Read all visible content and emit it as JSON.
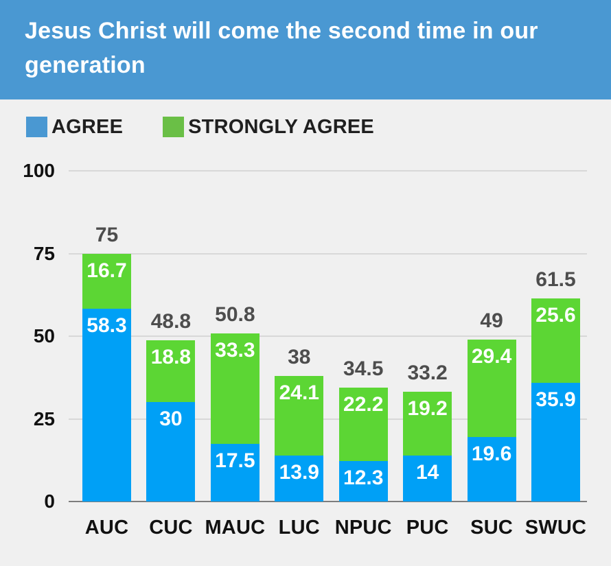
{
  "header": {
    "title": "Jesus Christ will come the second time in our generation",
    "bg_color": "#4a98d2",
    "text_color": "#ffffff"
  },
  "legend": {
    "items": [
      {
        "label": "AGREE",
        "color": "#4a98d2"
      },
      {
        "label": "STRONGLY AGREE",
        "color": "#6abf46"
      }
    ]
  },
  "chart_data": {
    "type": "bar",
    "stacked": true,
    "title": "Jesus Christ will come the second time in our generation",
    "categories": [
      "AUC",
      "CUC",
      "MAUC",
      "LUC",
      "NPUC",
      "PUC",
      "SUC",
      "SWUC"
    ],
    "series": [
      {
        "name": "AGREE",
        "color": "#00a0f6",
        "values": [
          58.3,
          30,
          17.5,
          13.9,
          12.3,
          14,
          19.6,
          35.9
        ]
      },
      {
        "name": "STRONGLY AGREE",
        "color": "#5cd634",
        "values": [
          16.7,
          18.8,
          33.3,
          24.1,
          22.2,
          19.2,
          29.4,
          25.6
        ]
      }
    ],
    "totals": [
      75,
      48.8,
      50.8,
      38,
      34.5,
      33.2,
      49,
      61.5
    ],
    "xlabel": "",
    "ylabel": "",
    "ylim": [
      0,
      100
    ],
    "y_ticks": [
      0,
      25,
      50,
      75,
      100
    ],
    "grid": true,
    "legend_position": "top-left",
    "colors": {
      "background": "#f0f0f0",
      "gridline": "#d8d8d8",
      "baseline": "#7d7d7d",
      "total_label": "#4d4d4d",
      "value_label": "#ffffff"
    }
  }
}
